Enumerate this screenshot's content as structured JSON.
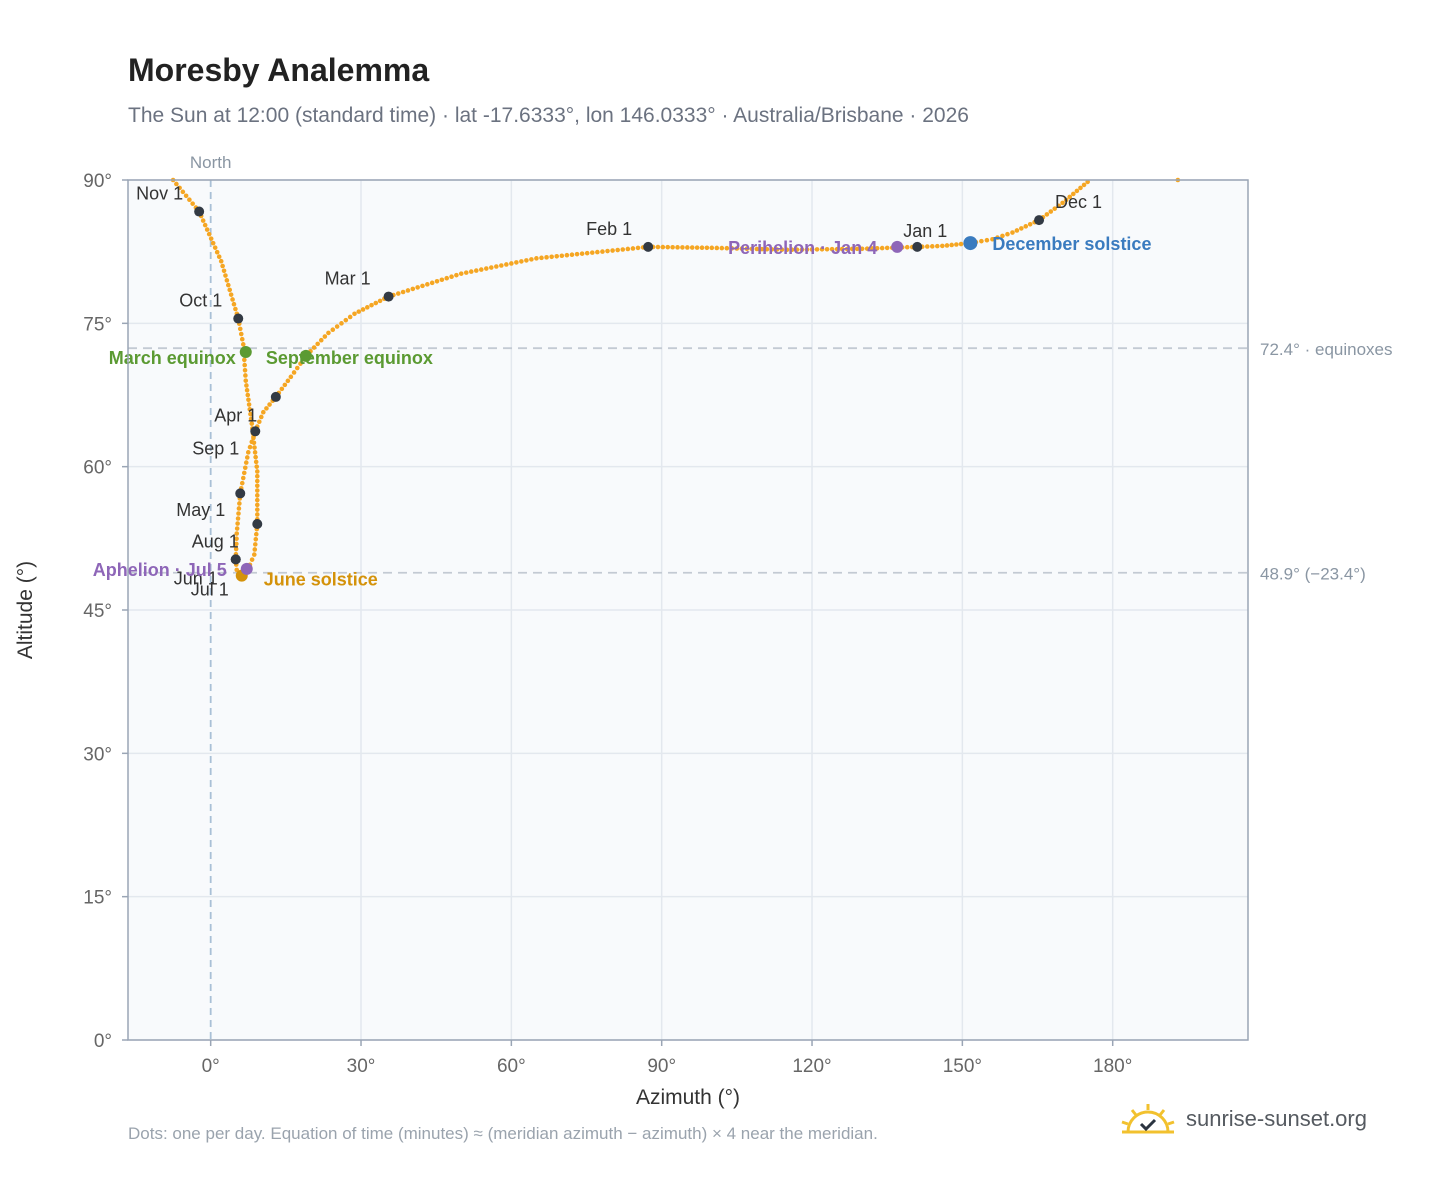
{
  "title": "Moresby Analemma",
  "subtitle": "The Sun at 12:00 (standard time) · lat -17.6333°, lon 146.0333° · Australia/Brisbane · 2026",
  "footnote": "Dots: one per day. Equation of time (minutes) ≈ (meridian azimuth − azimuth) × 4 near the meridian.",
  "brand": "sunrise-sunset.org",
  "colors": {
    "path": "#f5a623",
    "month_dot": "#333a44",
    "equinox": "#5b9a32",
    "june_solstice": "#d4920a",
    "december_solstice": "#3a7bbf",
    "apsis": "#8e66b8"
  },
  "chart_data": {
    "type": "scatter",
    "xlabel": "Azimuth (°)",
    "ylabel": "Altitude (°)",
    "xlim": [
      -16.5,
      207
    ],
    "ylim": [
      0,
      90
    ],
    "xticks": [
      0,
      30,
      60,
      90,
      120,
      150,
      180
    ],
    "yticks": [
      0,
      15,
      30,
      45,
      60,
      75,
      90
    ],
    "xtick_labels": [
      "0°",
      "30°",
      "60°",
      "90°",
      "120°",
      "150°",
      "180°"
    ],
    "ytick_labels": [
      "0°",
      "15°",
      "30°",
      "45°",
      "60°",
      "75°",
      "90°"
    ],
    "grid": true,
    "north_line": {
      "x": 0,
      "label": "North"
    },
    "reference_lines": [
      {
        "y": 72.4,
        "label": "72.4° · equinoxes"
      },
      {
        "y": 48.9,
        "label": "48.9° (−23.4°)"
      }
    ],
    "path_knots": [
      [
        -7.5,
        90
      ],
      [
        -2.3,
        86.7
      ],
      [
        2.1,
        81.5
      ],
      [
        5.5,
        75.5
      ],
      [
        6.5,
        72.8
      ],
      [
        7.0,
        69.0
      ],
      [
        8.2,
        64.5
      ],
      [
        9.3,
        59.5
      ],
      [
        9.3,
        54.0
      ],
      [
        8.7,
        50.8
      ],
      [
        7.4,
        49.2
      ],
      [
        6.2,
        48.6
      ],
      [
        5.2,
        49.2
      ],
      [
        5.0,
        50.3
      ],
      [
        5.2,
        53.0
      ],
      [
        5.9,
        57.2
      ],
      [
        7.5,
        61.5
      ],
      [
        8.9,
        63.7
      ],
      [
        10.5,
        65.7
      ],
      [
        13.0,
        67.3
      ],
      [
        16.0,
        69.4
      ],
      [
        19.2,
        71.7
      ],
      [
        23.5,
        74.0
      ],
      [
        28.7,
        76.0
      ],
      [
        35.5,
        77.8
      ],
      [
        50.0,
        80.2
      ],
      [
        65.0,
        81.8
      ],
      [
        87.3,
        83.0
      ],
      [
        100.0,
        82.9
      ],
      [
        115.0,
        82.7
      ],
      [
        130.0,
        82.8
      ],
      [
        141.0,
        83.0
      ],
      [
        146.0,
        83.1
      ],
      [
        151.6,
        83.4
      ],
      [
        156.0,
        83.8
      ],
      [
        160.0,
        84.5
      ],
      [
        165.3,
        85.8
      ],
      [
        170.0,
        87.6
      ],
      [
        175.0,
        89.8
      ]
    ],
    "path_outliers": [
      [
        193.0,
        90.0
      ]
    ],
    "month_markers": [
      {
        "label": "Jan 1",
        "x": 141.0,
        "y": 83.0
      },
      {
        "label": "Feb 1",
        "x": 87.3,
        "y": 83.0
      },
      {
        "label": "Mar 1",
        "x": 35.5,
        "y": 77.8
      },
      {
        "label": "Apr 1",
        "x": 8.9,
        "y": 63.7
      },
      {
        "label": "May 1",
        "x": 9.3,
        "y": 54.0
      },
      {
        "label": "Jun 1",
        "x": 5.0,
        "y": 50.3
      },
      {
        "label": "Jul 1",
        "x": 6.2,
        "y": 48.6
      },
      {
        "label": "Aug 1",
        "x": 5.0,
        "y": 50.3
      },
      {
        "label": "Sep 1",
        "x": 5.9,
        "y": 57.2
      },
      {
        "label": "Oct 1",
        "x": 5.5,
        "y": 75.5
      },
      {
        "label": "Nov 1",
        "x": -2.3,
        "y": 86.7
      },
      {
        "label": "Dec 1",
        "x": 165.3,
        "y": 85.8
      }
    ],
    "extra_month_dot": {
      "x": 13.0,
      "y": 67.3
    },
    "events": [
      {
        "label": "March equinox",
        "x": 7.0,
        "y": 72.0,
        "kind": "equinox"
      },
      {
        "label": "September equinox",
        "x": 19.0,
        "y": 71.6,
        "kind": "equinox"
      },
      {
        "label": "June solstice",
        "x": 6.2,
        "y": 48.6,
        "kind": "june_solstice"
      },
      {
        "label": "December solstice",
        "x": 151.6,
        "y": 83.4,
        "kind": "december_solstice"
      },
      {
        "label": "Aphelion · Jul 5",
        "x": 7.2,
        "y": 49.3,
        "kind": "apsis"
      },
      {
        "label": "Perihelion · Jan 4",
        "x": 137.0,
        "y": 83.0,
        "kind": "apsis"
      }
    ]
  }
}
